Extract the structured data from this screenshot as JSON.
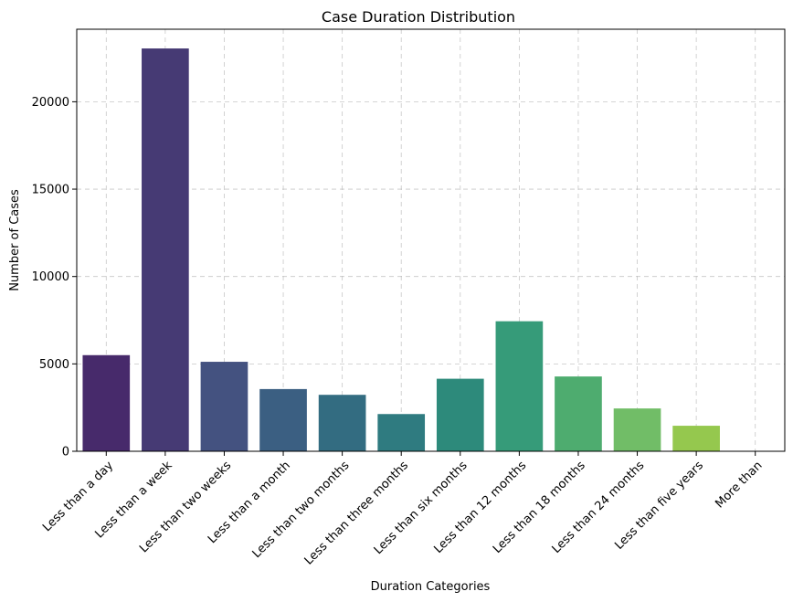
{
  "chart_data": {
    "type": "bar",
    "title": "Case Duration Distribution",
    "xlabel": "Duration Categories",
    "ylabel": "Number of Cases",
    "categories": [
      "Less than a day",
      "Less than a week",
      "Less than two weeks",
      "Less than a month",
      "Less than two months",
      "Less than three months",
      "Less than six months",
      "Less than 12 months",
      "Less than 18 months",
      "Less than 24 months",
      "Less than five years",
      "More than"
    ],
    "values": [
      5500,
      23050,
      5120,
      3560,
      3230,
      2130,
      4150,
      7440,
      4280,
      2450,
      1460,
      0
    ],
    "ylim": [
      0,
      24150
    ],
    "yticks": [
      0,
      5000,
      10000,
      15000,
      20000
    ],
    "ytick_labels": [
      "0",
      "5000",
      "10000",
      "15000",
      "20000"
    ],
    "grid": true,
    "colors": [
      "#472a6b",
      "#463a74",
      "#445280",
      "#3b5f82",
      "#336c81",
      "#2f7b80",
      "#2d8a7b",
      "#369b79",
      "#4eac6f",
      "#71bd67",
      "#95c84e",
      "#bcd33f"
    ]
  }
}
